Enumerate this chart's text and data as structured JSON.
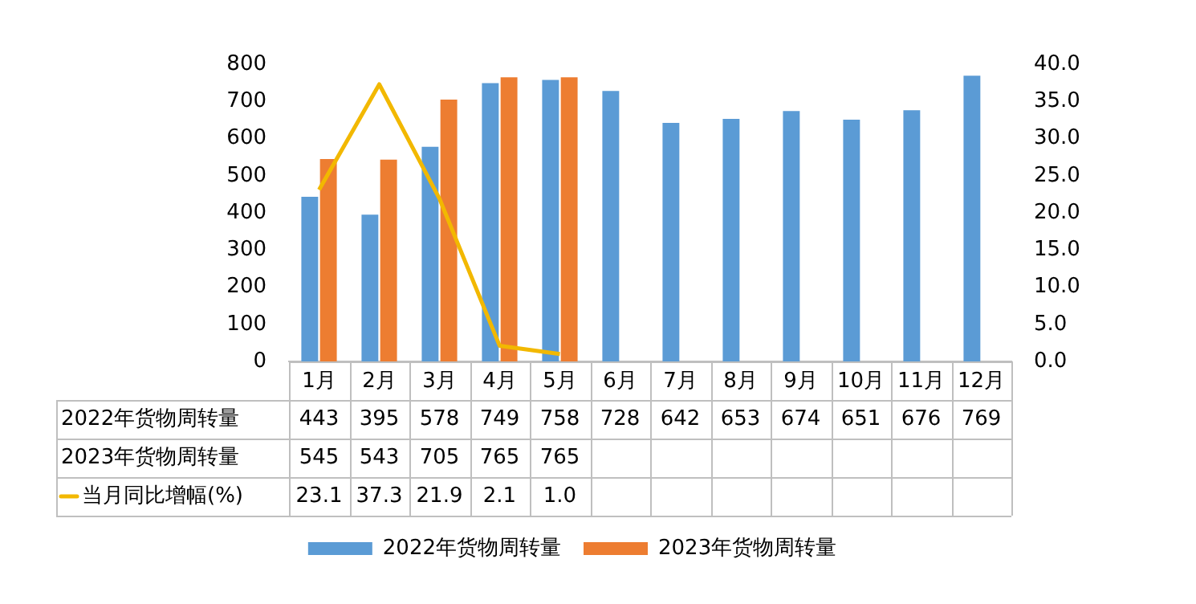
{
  "chart_data": {
    "type": "bar",
    "categories": [
      "1月",
      "2月",
      "3月",
      "4月",
      "5月",
      "6月",
      "7月",
      "8月",
      "9月",
      "10月",
      "11月",
      "12月"
    ],
    "series": [
      {
        "name": "2022年货物周转量",
        "color": "#5b9bd5",
        "values": [
          443,
          395,
          578,
          749,
          758,
          728,
          642,
          653,
          674,
          651,
          676,
          769
        ]
      },
      {
        "name": "2023年货物周转量",
        "color": "#ed7d31",
        "values": [
          545,
          543,
          705,
          765,
          765,
          null,
          null,
          null,
          null,
          null,
          null,
          null
        ]
      },
      {
        "name": "当月同比增幅(%)",
        "type": "line",
        "axis": "y2",
        "color": "#f2b800",
        "values": [
          23.1,
          37.3,
          21.9,
          2.1,
          1.0,
          null,
          null,
          null,
          null,
          null,
          null,
          null
        ],
        "value_labels": [
          "23.1",
          "37.3",
          "21.9",
          "2.1",
          "1.0",
          null,
          null,
          null,
          null,
          null,
          null,
          null
        ]
      }
    ],
    "ylim": [
      0,
      800
    ],
    "yticks": [
      0,
      100,
      200,
      300,
      400,
      500,
      600,
      700,
      800
    ],
    "y2lim": [
      0,
      40
    ],
    "y2ticks": [
      {
        "value": 0,
        "label": "0.0"
      },
      {
        "value": 5,
        "label": "5.0"
      },
      {
        "value": 10,
        "label": "10.0"
      },
      {
        "value": 15,
        "label": "15.0"
      },
      {
        "value": 20,
        "label": "20.0"
      },
      {
        "value": 25,
        "label": "25.0"
      },
      {
        "value": 30,
        "label": "30.0"
      },
      {
        "value": 35,
        "label": "35.0"
      },
      {
        "value": 40,
        "label": "40.0"
      }
    ],
    "data_labels": true,
    "legend": "bottom",
    "marker": "none",
    "grid": false
  }
}
